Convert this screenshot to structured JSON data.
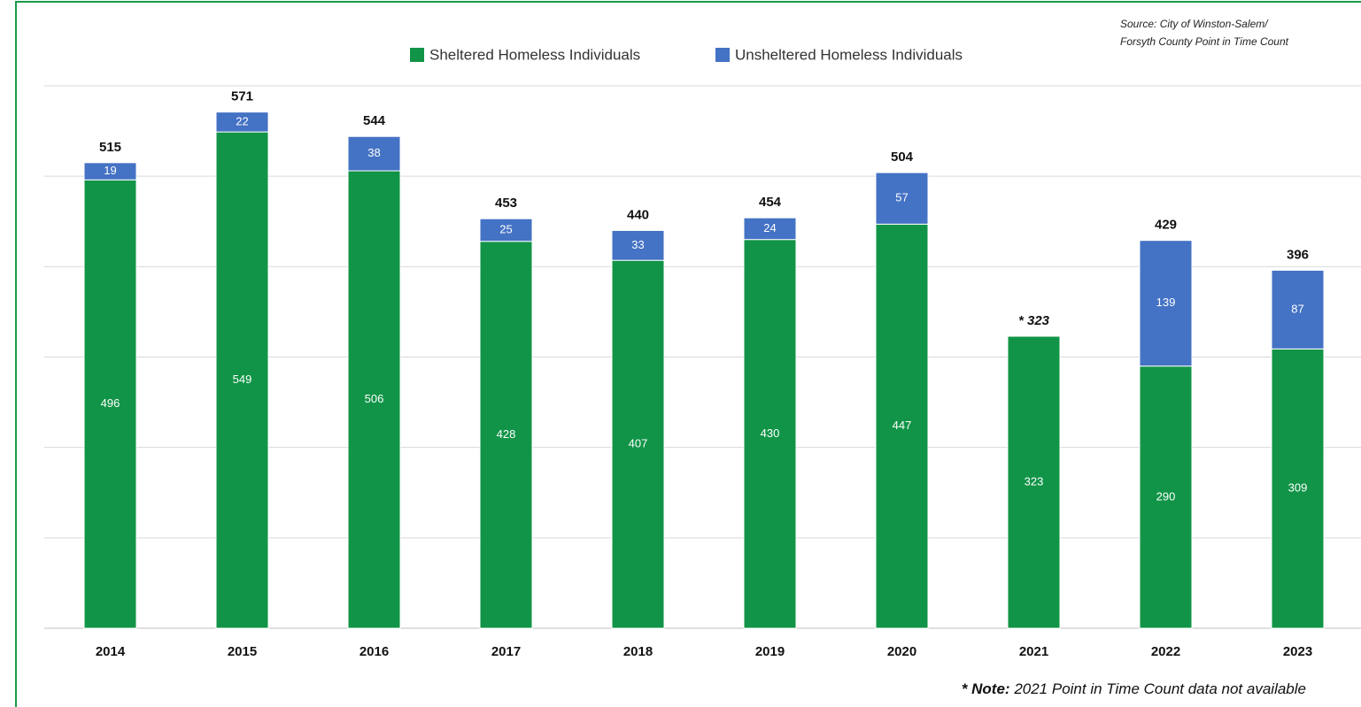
{
  "chart_data": {
    "type": "stacked-bar",
    "categories": [
      "2014",
      "2015",
      "2016",
      "2017",
      "2018",
      "2019",
      "2020",
      "2021",
      "2022",
      "2023"
    ],
    "series": [
      {
        "name": "Sheltered Homeless Individuals",
        "color": "#119447",
        "values": [
          496,
          549,
          506,
          428,
          407,
          430,
          447,
          323,
          290,
          309
        ]
      },
      {
        "name": "Unsheltered Homeless Individuals",
        "color": "#4472c4",
        "values": [
          19,
          22,
          38,
          25,
          33,
          24,
          57,
          null,
          139,
          87
        ]
      }
    ],
    "total_labels": [
      "515",
      "571",
      "544",
      "453",
      "440",
      "454",
      "504",
      "* 323",
      "429",
      "396"
    ],
    "ylim": [
      0,
      600
    ],
    "yticks": [
      0,
      100,
      200,
      300,
      400,
      500,
      600
    ],
    "grid": true,
    "legend": "top",
    "source": [
      "Source: City of Winston-Salem/",
      "Forsyth County Point in Time Count"
    ],
    "note_label": "* Note:",
    "note": "2021 Point in Time Count data not available"
  }
}
